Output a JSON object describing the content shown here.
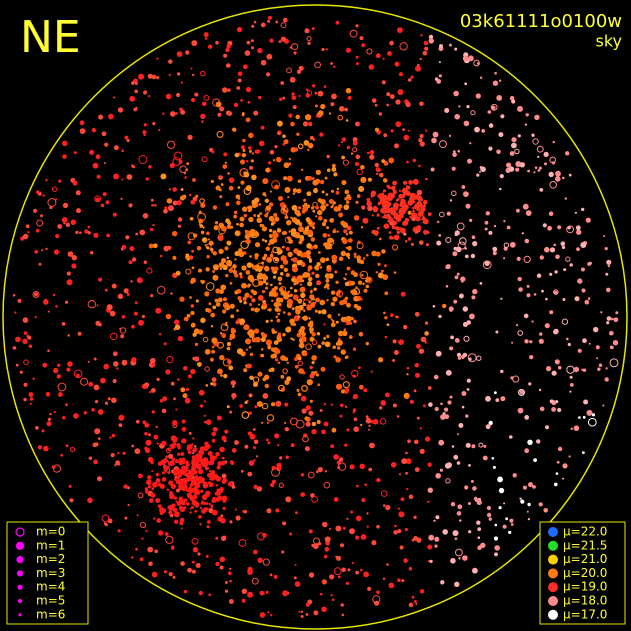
{
  "header": {
    "direction": "NE",
    "frame_id": "03k61111o0100w",
    "mode": "sky"
  },
  "magnitude_legend": {
    "color": "#ff00ff",
    "items": [
      "m=0",
      "m=1",
      "m=2",
      "m=3",
      "m=4",
      "m=5",
      "m=6"
    ]
  },
  "brightness_legend": {
    "items": [
      {
        "label": "μ=22.0",
        "color": "#1e6bff"
      },
      {
        "label": "μ=21.5",
        "color": "#22dd22"
      },
      {
        "label": "μ=21.0",
        "color": "#ffd000"
      },
      {
        "label": "μ=20.0",
        "color": "#ff7a10"
      },
      {
        "label": "μ=19.0",
        "color": "#ff2a2a"
      },
      {
        "label": "μ=18.0",
        "color": "#ff8c8c"
      },
      {
        "label": "μ=17.0",
        "color": "#ffffff"
      }
    ]
  }
}
